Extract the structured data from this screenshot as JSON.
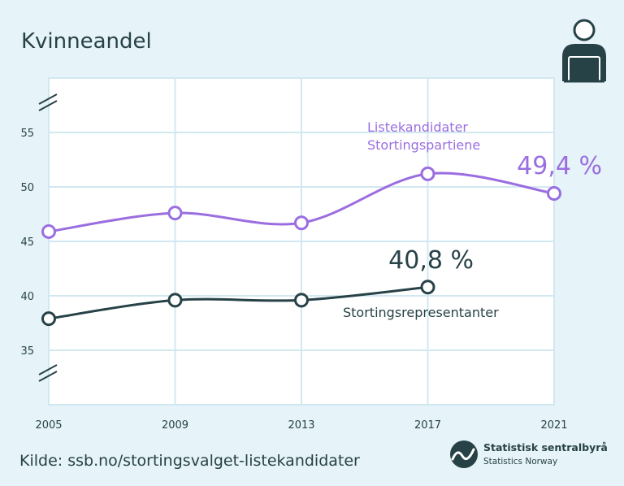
{
  "title": "Kvinneandel",
  "source": "Kilde: ssb.no/stortingsvalget-listekandidater",
  "logo": {
    "name": "Statistisk sentralbyrå",
    "subtitle": "Statistics Norway",
    "icon": "ssb-wave-logo-icon"
  },
  "icon": "person-at-laptop-icon",
  "colors": {
    "background": "#e6f3f8",
    "plot_background": "#ffffff",
    "grid": "#d2e8f0",
    "text": "#274247",
    "series_candidates": "#9a6ee0",
    "series_representatives": "#274247"
  },
  "chart_data": {
    "type": "line",
    "title": "Kvinneandel",
    "x": [
      2005,
      2009,
      2013,
      2017,
      2021
    ],
    "x_tick_labels": [
      "2005",
      "2009",
      "2013",
      "2017",
      "2021"
    ],
    "y_tick_values": [
      35,
      40,
      45,
      50,
      55
    ],
    "y_tick_labels": [
      "35",
      "40",
      "45",
      "50",
      "55"
    ],
    "ylim": [
      30,
      60
    ],
    "y_axis_break": true,
    "grid": true,
    "series": [
      {
        "name": "Listekandidater Stortingspartiene",
        "label_lines": [
          "Listekandidater",
          "Stortingspartiene"
        ],
        "values": [
          45.9,
          47.6,
          46.7,
          51.2,
          49.4
        ],
        "end_label": "49,4 %"
      },
      {
        "name": "Stortingsrepresentanter",
        "label_lines": [
          "Stortingsrepresentanter"
        ],
        "values": [
          37.9,
          39.6,
          39.6,
          40.8,
          null
        ],
        "end_label": "40,8 %"
      }
    ]
  }
}
